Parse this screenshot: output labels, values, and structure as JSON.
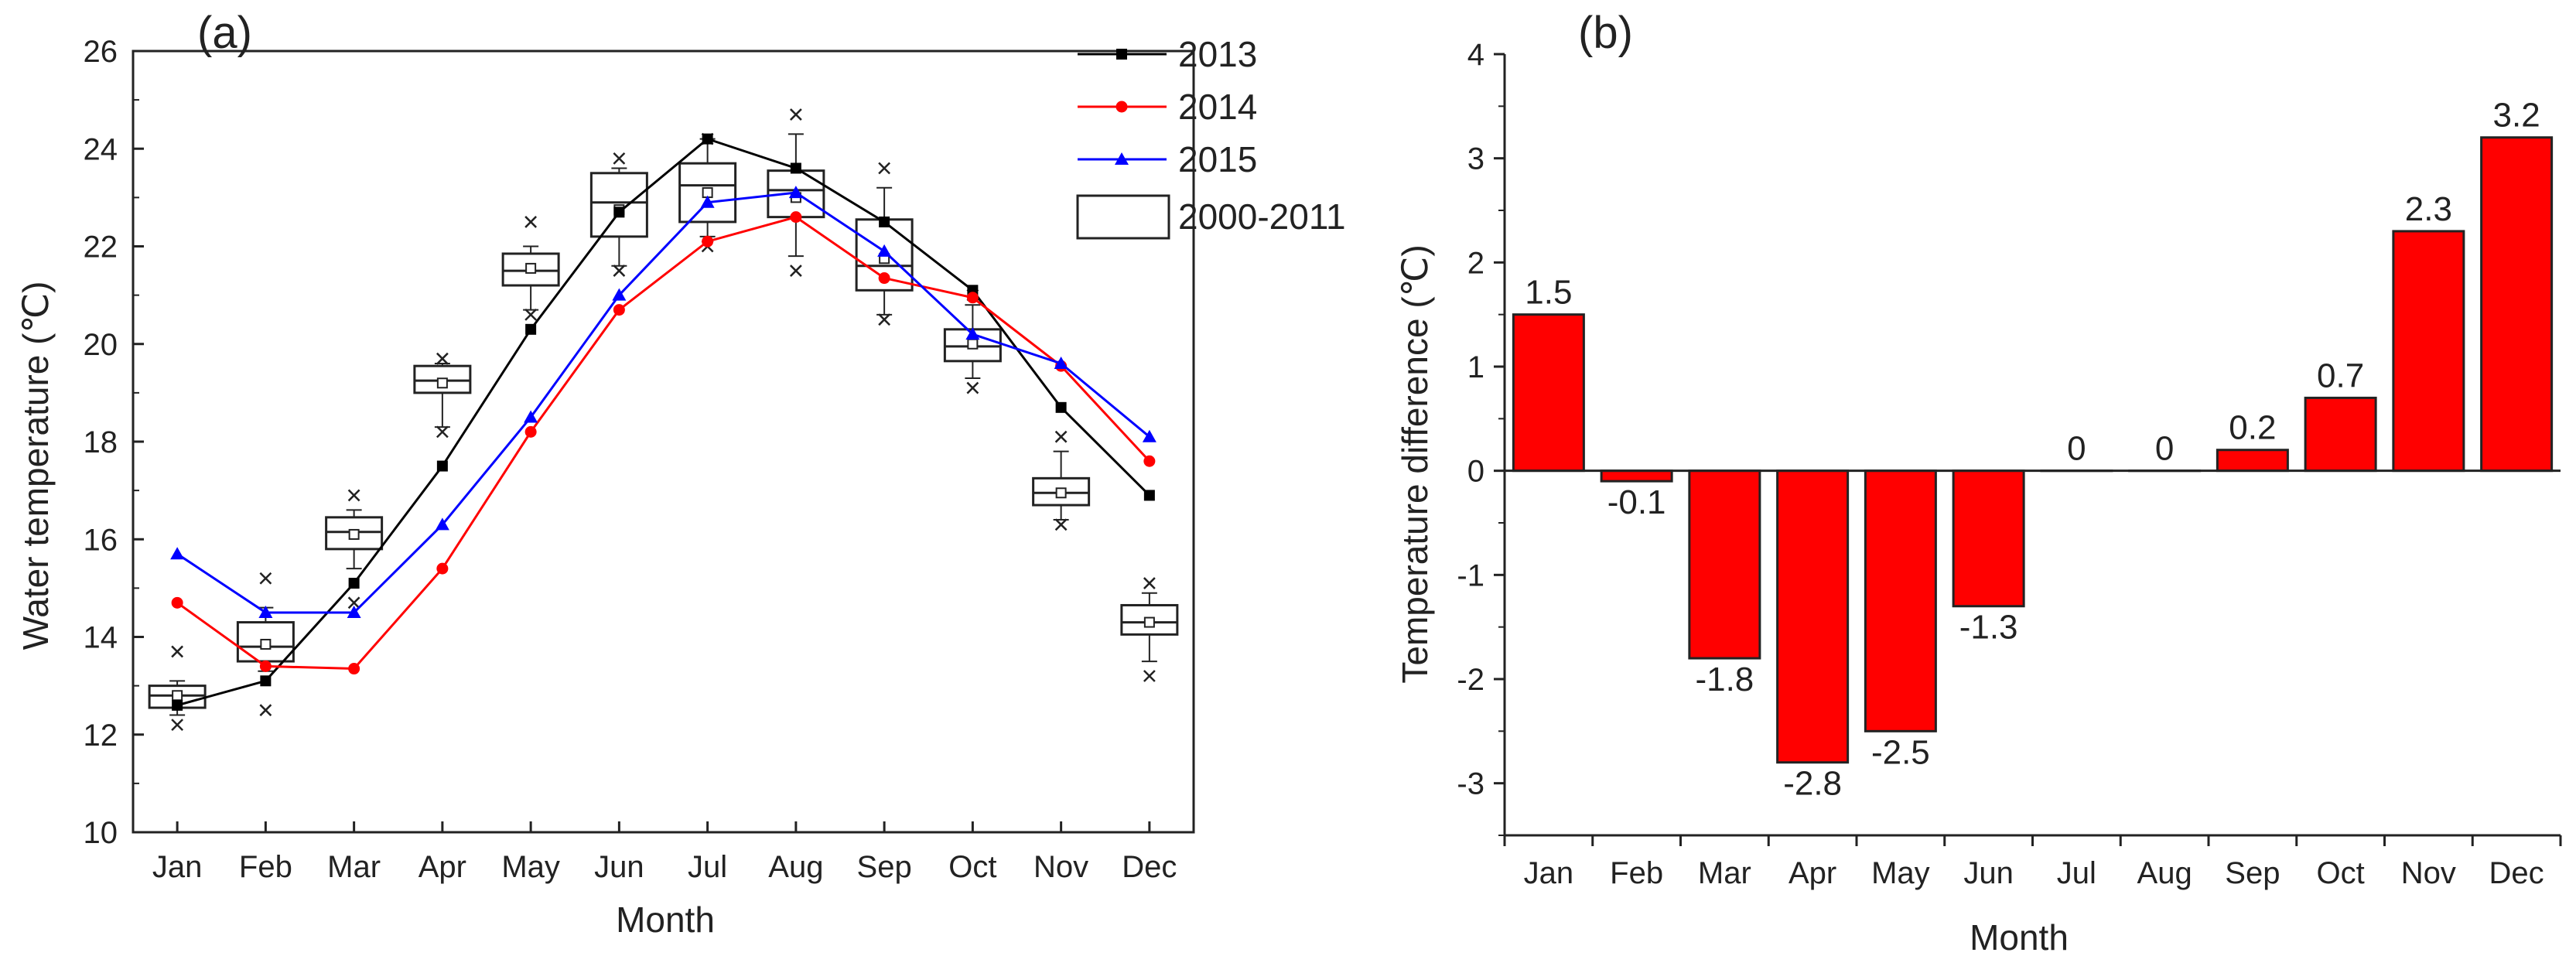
{
  "figure": {
    "background": "#ffffff",
    "axis_color": "#222222"
  },
  "chart_data": [
    {
      "id": "a",
      "type": "line",
      "panel_label": "(a)",
      "xlabel": "Month",
      "ylabel": "Water temperature (℃)",
      "categories": [
        "Jan",
        "Feb",
        "Mar",
        "Apr",
        "May",
        "Jun",
        "Jul",
        "Aug",
        "Sep",
        "Oct",
        "Nov",
        "Dec"
      ],
      "ylim": [
        10,
        26
      ],
      "yticks": [
        10,
        12,
        14,
        16,
        18,
        20,
        22,
        24,
        26
      ],
      "grid": false,
      "legend_position": "top-right",
      "series": [
        {
          "name": "2013",
          "color": "#000000",
          "marker": "square",
          "values": [
            12.6,
            13.1,
            15.1,
            17.5,
            20.3,
            22.7,
            24.2,
            23.6,
            22.5,
            21.1,
            18.7,
            16.9
          ]
        },
        {
          "name": "2014",
          "color": "#ff0000",
          "marker": "circle",
          "values": [
            14.7,
            13.4,
            13.35,
            15.4,
            18.2,
            20.7,
            22.1,
            22.6,
            21.35,
            20.95,
            19.55,
            17.6
          ]
        },
        {
          "name": "2015",
          "color": "#0000ff",
          "marker": "triangle",
          "values": [
            15.7,
            14.5,
            14.5,
            16.3,
            18.5,
            21.0,
            22.9,
            23.1,
            21.9,
            20.2,
            19.6,
            18.1
          ]
        }
      ],
      "boxplot": {
        "name": "2000-2011",
        "boxes": [
          {
            "q1": 12.55,
            "median": 12.8,
            "q3": 13.0,
            "mean": 12.8,
            "whisker_low": 12.4,
            "whisker_high": 13.1,
            "outliers": [
              12.2,
              13.7
            ]
          },
          {
            "q1": 13.5,
            "median": 13.8,
            "q3": 14.3,
            "mean": 13.85,
            "whisker_low": 13.3,
            "whisker_high": 14.6,
            "outliers": [
              12.5,
              15.2
            ]
          },
          {
            "q1": 15.8,
            "median": 16.15,
            "q3": 16.45,
            "mean": 16.1,
            "whisker_low": 15.4,
            "whisker_high": 16.6,
            "outliers": [
              14.7,
              16.9
            ]
          },
          {
            "q1": 19.0,
            "median": 19.25,
            "q3": 19.55,
            "mean": 19.2,
            "whisker_low": 18.3,
            "whisker_high": 19.6,
            "outliers": [
              18.2,
              19.7
            ]
          },
          {
            "q1": 21.2,
            "median": 21.5,
            "q3": 21.85,
            "mean": 21.55,
            "whisker_low": 20.7,
            "whisker_high": 22.0,
            "outliers": [
              20.6,
              22.5
            ]
          },
          {
            "q1": 22.2,
            "median": 22.9,
            "q3": 23.5,
            "mean": 22.75,
            "whisker_low": 21.6,
            "whisker_high": 23.6,
            "outliers": [
              21.5,
              23.8
            ]
          },
          {
            "q1": 22.5,
            "median": 23.25,
            "q3": 23.7,
            "mean": 23.1,
            "whisker_low": 22.2,
            "whisker_high": 24.2,
            "outliers": [
              22.0,
              24.2
            ]
          },
          {
            "q1": 22.6,
            "median": 23.15,
            "q3": 23.55,
            "mean": 23.0,
            "whisker_low": 21.8,
            "whisker_high": 24.3,
            "outliers": [
              21.5,
              24.7
            ]
          },
          {
            "q1": 21.1,
            "median": 21.6,
            "q3": 22.55,
            "mean": 21.75,
            "whisker_low": 20.6,
            "whisker_high": 23.2,
            "outliers": [
              20.5,
              23.6
            ]
          },
          {
            "q1": 19.65,
            "median": 19.95,
            "q3": 20.3,
            "mean": 20.0,
            "whisker_low": 19.3,
            "whisker_high": 20.8,
            "outliers": [
              19.1,
              21.0
            ]
          },
          {
            "q1": 16.7,
            "median": 16.95,
            "q3": 17.25,
            "mean": 16.95,
            "whisker_low": 16.4,
            "whisker_high": 17.8,
            "outliers": [
              16.3,
              18.1
            ]
          },
          {
            "q1": 14.05,
            "median": 14.3,
            "q3": 14.65,
            "mean": 14.3,
            "whisker_low": 13.5,
            "whisker_high": 14.9,
            "outliers": [
              13.2,
              15.1
            ]
          }
        ]
      }
    },
    {
      "id": "b",
      "type": "bar",
      "panel_label": "(b)",
      "xlabel": "Month",
      "ylabel": "Temperature difference (℃)",
      "categories": [
        "Jan",
        "Feb",
        "Mar",
        "Apr",
        "May",
        "Jun",
        "Jul",
        "Aug",
        "Sep",
        "Oct",
        "Nov",
        "Dec"
      ],
      "values": [
        1.5,
        -0.1,
        -1.8,
        -2.8,
        -2.5,
        -1.3,
        0,
        0,
        0.2,
        0.7,
        2.3,
        3.2
      ],
      "value_labels": [
        "1.5",
        "-0.1",
        "-1.8",
        "-2.8",
        "-2.5",
        "-1.3",
        "0",
        "0",
        "0.2",
        "0.7",
        "2.3",
        "3.2"
      ],
      "bar_color": "#ff0000",
      "ylim": [
        -3.5,
        4
      ],
      "yticks": [
        -3,
        -2,
        -1,
        0,
        1,
        2,
        3,
        4
      ],
      "grid": false
    }
  ]
}
